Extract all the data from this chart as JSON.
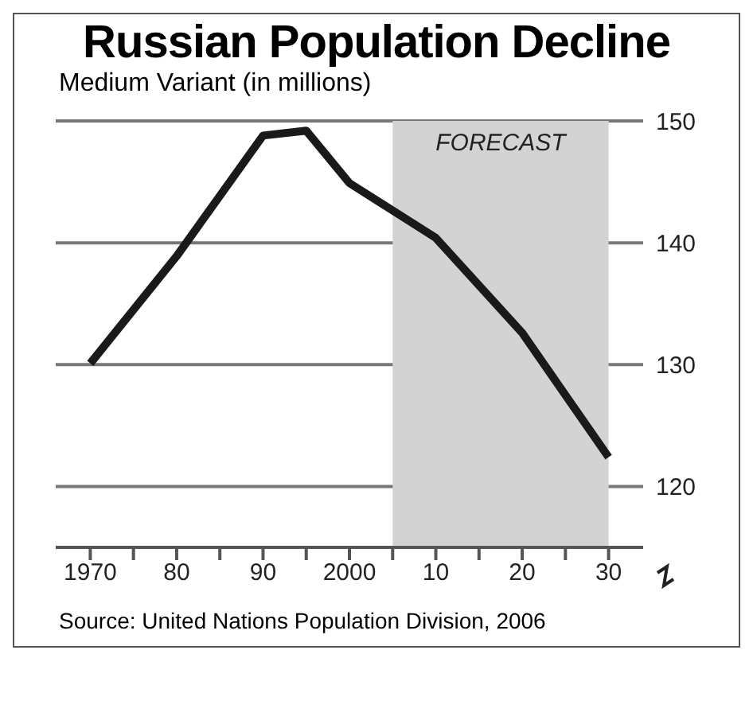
{
  "chart_data": {
    "type": "line",
    "title": "Russian Population Decline",
    "subtitle": "Medium Variant (in millions)",
    "x": [
      1970,
      1980,
      1990,
      1995,
      2000,
      2010,
      2020,
      2030
    ],
    "series": [
      {
        "color": "#1a1a1a",
        "values": [
          130.1,
          138.9,
          148.8,
          149.2,
          144.9,
          140.4,
          132.6,
          122.4
        ]
      }
    ],
    "xlim": [
      1966,
      2034
    ],
    "xticks": [
      1970,
      {
        "value": 1975,
        "label": null
      },
      {
        "value": 1980,
        "label": "80"
      },
      {
        "value": 1985,
        "label": null
      },
      {
        "value": 1990,
        "label": "90"
      },
      {
        "value": 1995,
        "label": null
      },
      2000,
      {
        "value": 2005,
        "label": null
      },
      {
        "value": 2010,
        "label": "10"
      },
      {
        "value": 2015,
        "label": null
      },
      {
        "value": 2020,
        "label": "20"
      },
      {
        "value": 2025,
        "label": null
      },
      {
        "value": 2030,
        "label": "30"
      }
    ],
    "ylim": [
      115,
      150
    ],
    "yticks": [
      120,
      130,
      140,
      150
    ],
    "bands": [
      {
        "axis": "x",
        "from": 2005,
        "to": 2030,
        "label": "FORECAST",
        "color": "#d3d3d3"
      }
    ],
    "grid": "y",
    "marker": "none",
    "line_style": "solid",
    "annotations": [
      "Source: United Nations Population Division, 2006"
    ]
  }
}
